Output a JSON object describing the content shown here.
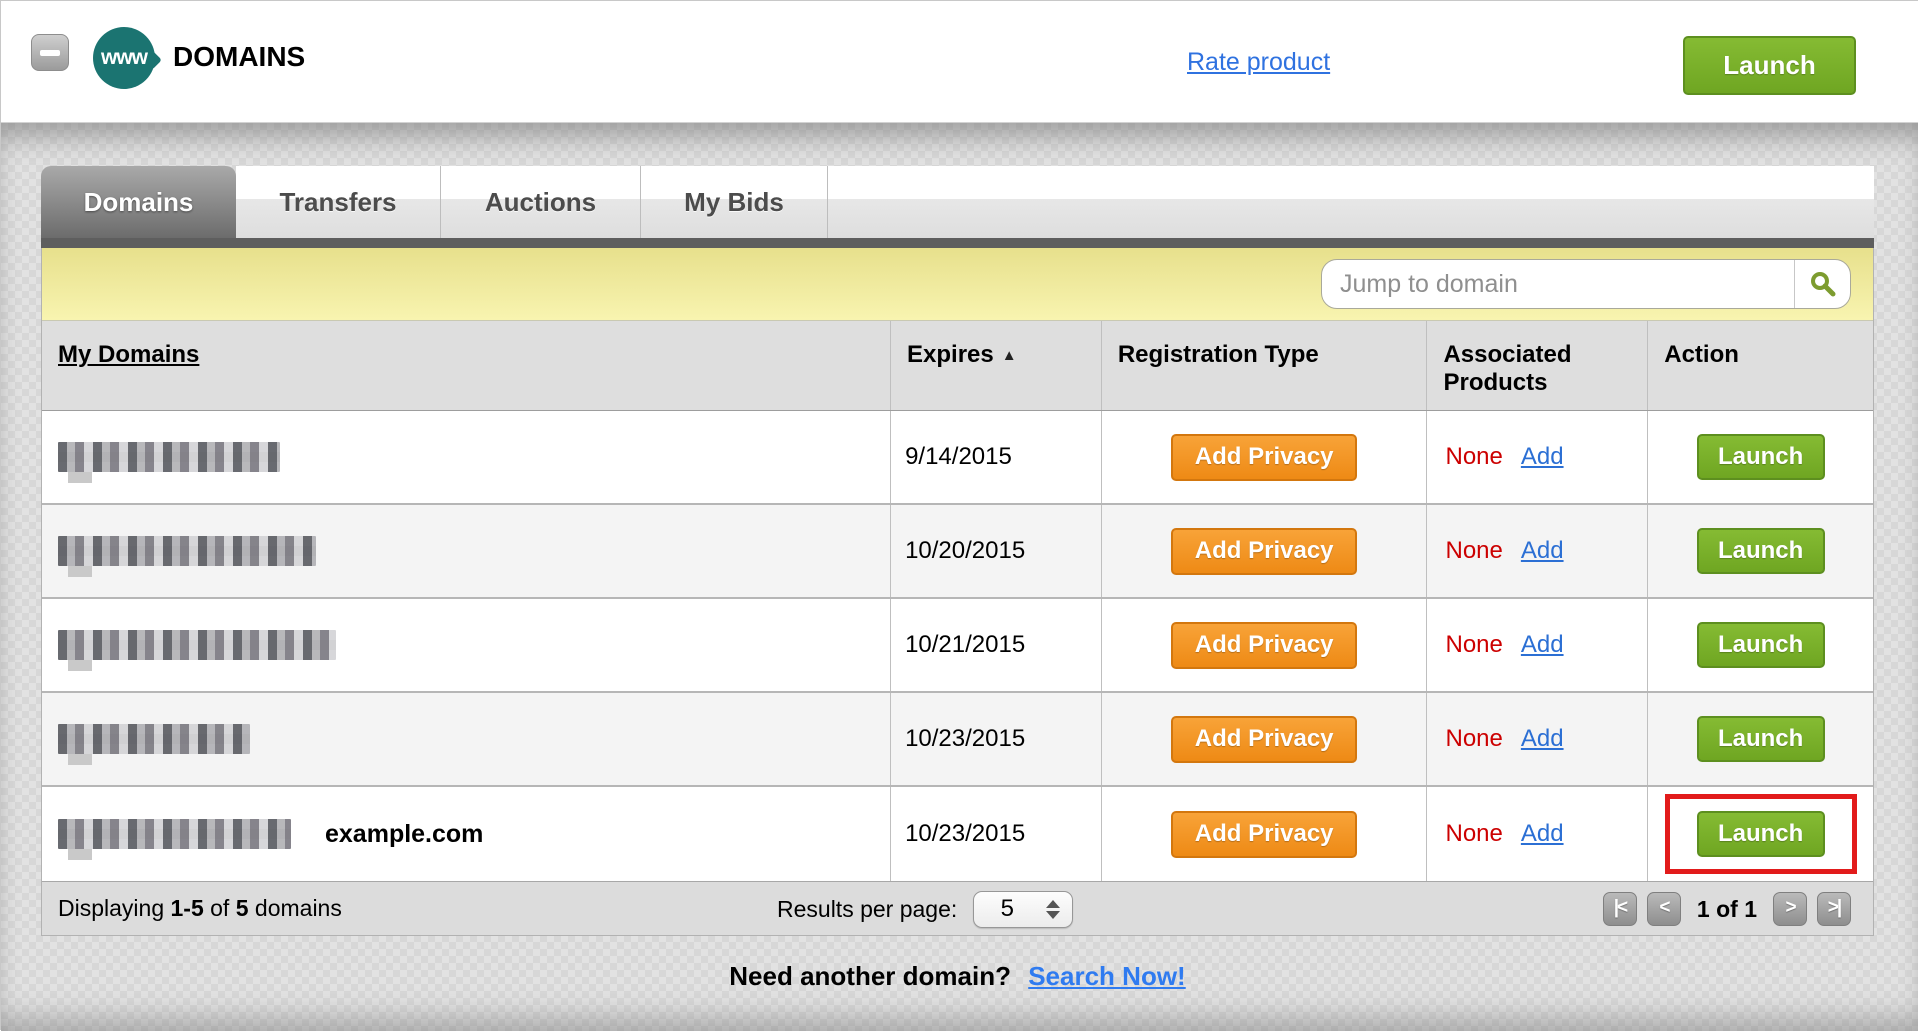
{
  "app": {
    "title": "DOMAINS",
    "rate_product_label": "Rate product",
    "launch_label": "Launch",
    "www_icon_text": "www"
  },
  "tabs": [
    {
      "label": "Domains",
      "active": true
    },
    {
      "label": "Transfers",
      "active": false
    },
    {
      "label": "Auctions",
      "active": false
    },
    {
      "label": "My Bids",
      "active": false
    }
  ],
  "search": {
    "placeholder": "Jump to domain"
  },
  "table": {
    "columns": {
      "my_domains": "My Domains",
      "expires": "Expires",
      "sort_asc_icon": "▲",
      "registration_type": "Registration Type",
      "associated_products": "Associated Products",
      "action": "Action"
    }
  },
  "rows": [
    {
      "domain_redacted": true,
      "blur_width": 222,
      "note": "",
      "expires": "9/14/2015",
      "privacy_label": "Add Privacy",
      "associated_value": "None",
      "associated_link": "Add",
      "action_label": "Launch",
      "highlighted": false
    },
    {
      "domain_redacted": true,
      "blur_width": 258,
      "note": "",
      "expires": "10/20/2015",
      "privacy_label": "Add Privacy",
      "associated_value": "None",
      "associated_link": "Add",
      "action_label": "Launch",
      "highlighted": false
    },
    {
      "domain_redacted": true,
      "blur_width": 278,
      "note": "",
      "expires": "10/21/2015",
      "privacy_label": "Add Privacy",
      "associated_value": "None",
      "associated_link": "Add",
      "action_label": "Launch",
      "highlighted": false
    },
    {
      "domain_redacted": true,
      "blur_width": 192,
      "note": "",
      "expires": "10/23/2015",
      "privacy_label": "Add Privacy",
      "associated_value": "None",
      "associated_link": "Add",
      "action_label": "Launch",
      "highlighted": false
    },
    {
      "domain_redacted": true,
      "blur_width": 233,
      "note": "example.com",
      "expires": "10/23/2015",
      "privacy_label": "Add Privacy",
      "associated_value": "None",
      "associated_link": "Add",
      "action_label": "Launch",
      "highlighted": true
    }
  ],
  "footer": {
    "displaying_prefix": "Displaying",
    "range": "1-5",
    "of_word": "of",
    "total": "5",
    "suffix": "domains",
    "results_per_page_label": "Results per page:",
    "per_page_value": "5",
    "pager": {
      "first": "|<",
      "prev": "<",
      "status": "1 of 1",
      "next": ">",
      "last": ">|"
    }
  },
  "bottom": {
    "prompt": "Need another domain?",
    "link": "Search Now!"
  },
  "colors": {
    "accent_green": "#76b42a",
    "accent_orange": "#f08c1e",
    "highlight_red": "#e21b1b",
    "link_blue": "#2f72e0",
    "none_red": "#cc0000",
    "bar_yellow": "#f4efa4",
    "teal_icon": "#1b7471"
  }
}
